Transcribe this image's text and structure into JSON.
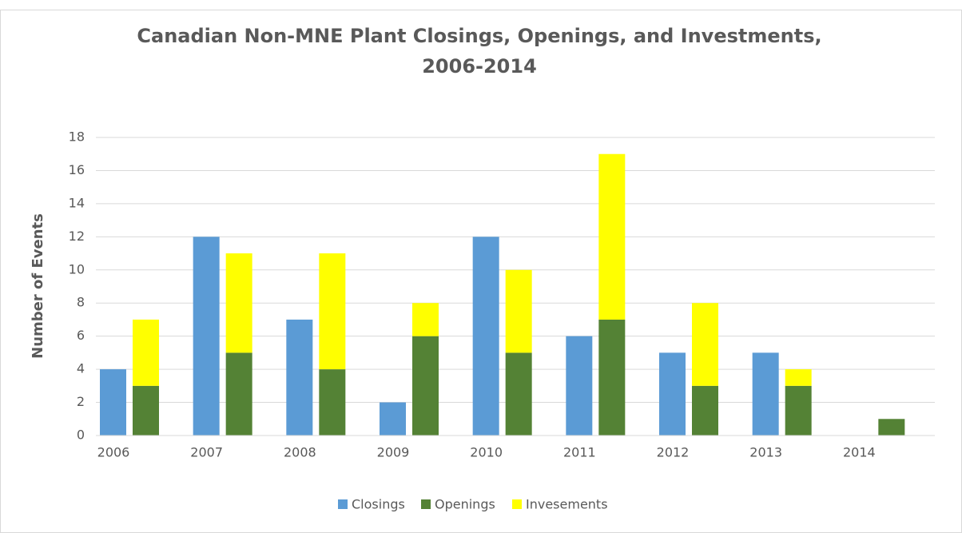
{
  "chart_data": {
    "type": "bar",
    "title": "Canadian Non-MNE Plant Closings, Openings, and Investments, 2006-2014",
    "y_label": "Number of Events",
    "categories": [
      "2006",
      "2007",
      "2008",
      "2009",
      "2010",
      "2011",
      "2012",
      "2013",
      "2014"
    ],
    "series": [
      {
        "name": "Closings",
        "color": "#5b9bd5",
        "values": [
          4,
          12,
          7,
          2,
          12,
          6,
          5,
          5,
          0
        ]
      },
      {
        "name": "Openings",
        "color": "#548235",
        "values": [
          3,
          5,
          4,
          6,
          5,
          7,
          3,
          3,
          1
        ]
      },
      {
        "name": "Invesements",
        "color": "#ffff00",
        "values": [
          4,
          6,
          7,
          2,
          5,
          10,
          5,
          1,
          0
        ]
      }
    ],
    "ylim": [
      0,
      18
    ],
    "yticks": [
      0,
      2,
      4,
      6,
      8,
      10,
      12,
      14,
      16,
      18
    ],
    "grid": true,
    "legend": "bottom"
  }
}
